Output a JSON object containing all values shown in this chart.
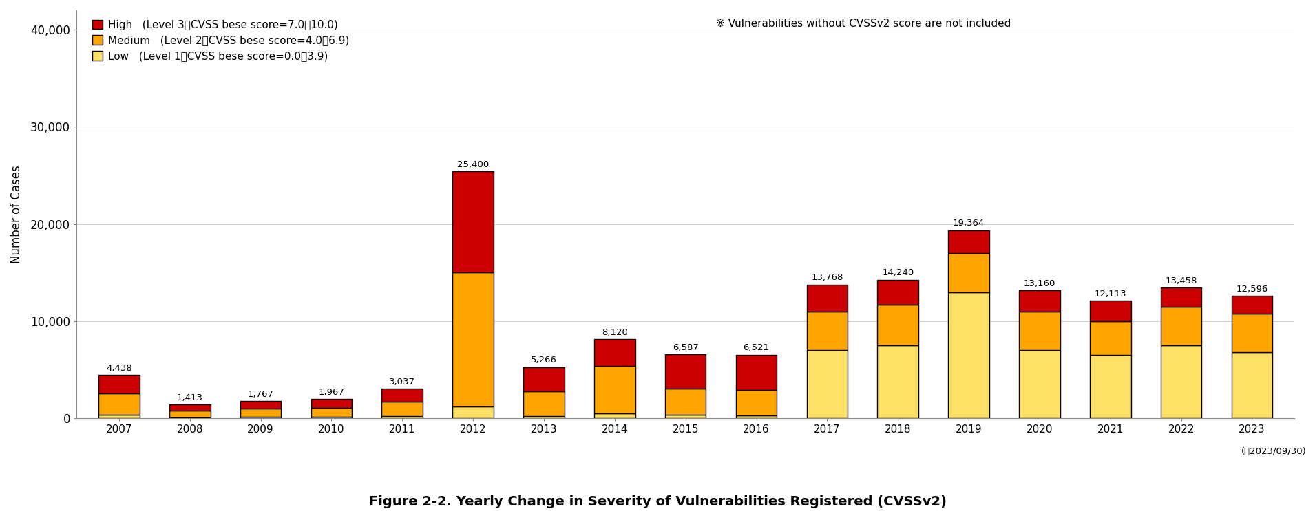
{
  "years": [
    2007,
    2008,
    2009,
    2010,
    2011,
    2012,
    2013,
    2014,
    2015,
    2016,
    2017,
    2018,
    2019,
    2020,
    2021,
    2022,
    2023
  ],
  "totals": [
    4438,
    1413,
    1767,
    1967,
    3037,
    25400,
    5266,
    8120,
    6587,
    6521,
    13768,
    14240,
    19364,
    13160,
    12113,
    13458,
    12596
  ],
  "low": [
    350,
    100,
    130,
    130,
    200,
    1200,
    250,
    500,
    350,
    300,
    7000,
    7500,
    13000,
    7000,
    6500,
    7500,
    6800
  ],
  "medium": [
    2200,
    650,
    850,
    950,
    1500,
    13800,
    2500,
    4900,
    2700,
    2600,
    4000,
    4200,
    4000,
    4000,
    3500,
    4000,
    4000
  ],
  "high": [
    1888,
    663,
    787,
    887,
    1337,
    10400,
    2516,
    2720,
    3537,
    3621,
    2768,
    2540,
    2364,
    2160,
    2113,
    1958,
    1796
  ],
  "color_low": "#FFE066",
  "color_medium": "#FFA500",
  "color_high": "#CC0000",
  "color_bar_edge": "#000000",
  "ylabel": "Number of Cases",
  "ylim": [
    0,
    42000
  ],
  "yticks": [
    0,
    10000,
    20000,
    30000,
    40000
  ],
  "ytick_labels": [
    "0",
    "10,000",
    "20,000",
    "30,000",
    "40,000"
  ],
  "legend_high_label": "High   (Level 3、CVSS bese score=7.0～10.0)",
  "legend_medium_label": "Medium   (Level 2、CVSS bese score=4.0～6.9)",
  "legend_low_label": "Low   (Level 1、CVSS bese score=0.0～3.9)",
  "note": "※ Vulnerabilities without CVSSv2 score are not included",
  "date_note": "(～2023/09/30)",
  "figure_caption": "Figure 2-2. Yearly Change in Severity of Vulnerabilities Registered (CVSSv2)",
  "background_color": "#FFFFFF"
}
